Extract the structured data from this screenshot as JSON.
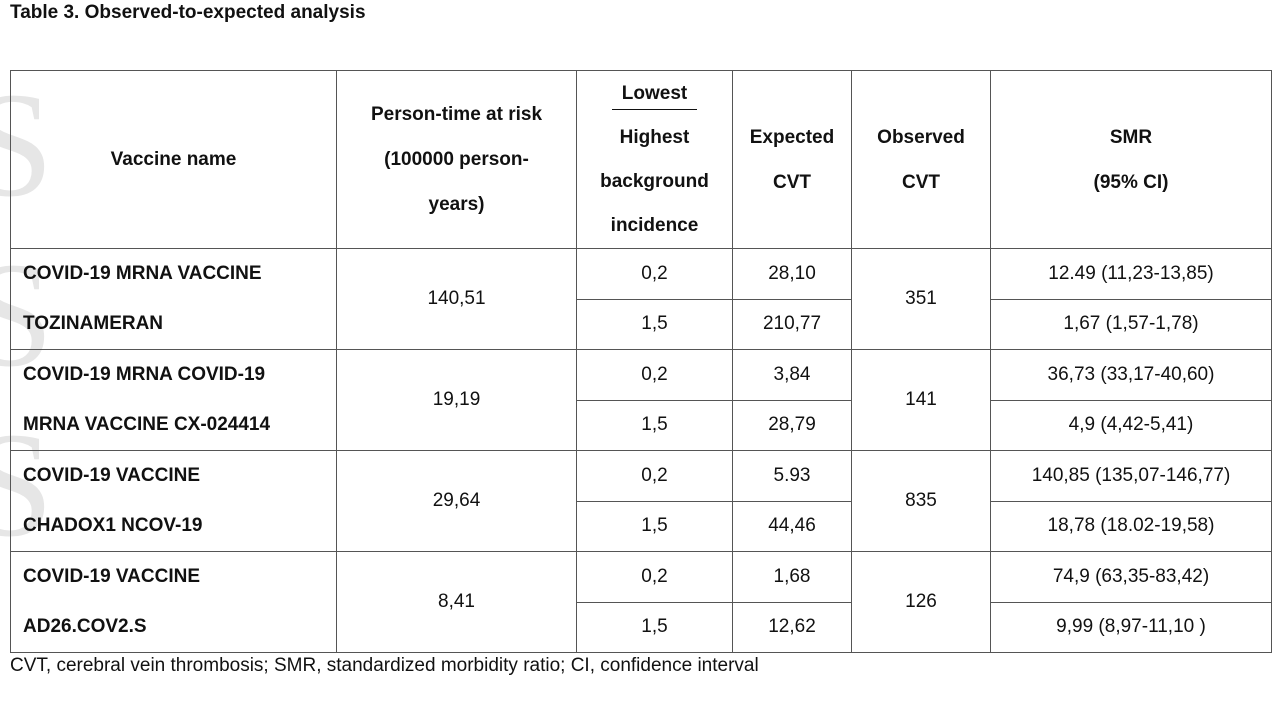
{
  "title": "Table 3. Observed-to-expected analysis",
  "headers": {
    "vaccine": "Vaccine name",
    "person_time_1": "Person-time at risk",
    "person_time_2": "(100000 person-",
    "person_time_3": "years)",
    "incidence_top": "Lowest",
    "incidence_bottom_1": "Highest",
    "incidence_bottom_2": "background",
    "incidence_bottom_3": "incidence",
    "expected_1": "Expected",
    "expected_2": "CVT",
    "observed_1": "Observed",
    "observed_2": "CVT",
    "smr_1": "SMR",
    "smr_2": "(95% CI)"
  },
  "rows": [
    {
      "name_1": "COVID-19 MRNA VACCINE",
      "name_2": "TOZINAMERAN",
      "person_time": "140,51",
      "observed": "351",
      "sub": [
        {
          "incidence": "0,2",
          "expected": "28,10",
          "smr": "12.49 (11,23-13,85)"
        },
        {
          "incidence": "1,5",
          "expected": "210,77",
          "smr": "1,67 (1,57-1,78)"
        }
      ]
    },
    {
      "name_1": "COVID-19 MRNA COVID-19",
      "name_2": "MRNA VACCINE CX-024414",
      "person_time": "19,19",
      "observed": "141",
      "sub": [
        {
          "incidence": "0,2",
          "expected": "3,84",
          "smr": "36,73 (33,17-40,60)"
        },
        {
          "incidence": "1,5",
          "expected": "28,79",
          "smr": "4,9 (4,42-5,41)"
        }
      ]
    },
    {
      "name_1": "COVID-19 VACCINE",
      "name_2": "CHADOX1 NCOV-19",
      "person_time": "29,64",
      "observed": "835",
      "sub": [
        {
          "incidence": "0,2",
          "expected": "5.93",
          "smr": "140,85 (135,07-146,77)"
        },
        {
          "incidence": "1,5",
          "expected": "44,46",
          "smr": "18,78 (18.02-19,58)"
        }
      ]
    },
    {
      "name_1": "COVID-19 VACCINE",
      "name_2": "AD26.COV2.S",
      "person_time": "8,41",
      "observed": "126",
      "sub": [
        {
          "incidence": "0,2",
          "expected": "1,68",
          "smr": "74,9 (63,35-83,42)"
        },
        {
          "incidence": "1,5",
          "expected": "12,62",
          "smr": "9,99 (8,97-11,10 )"
        }
      ]
    }
  ],
  "caption": "CVT, cerebral vein thrombosis; SMR, standardized morbidity ratio; CI, confidence interval"
}
